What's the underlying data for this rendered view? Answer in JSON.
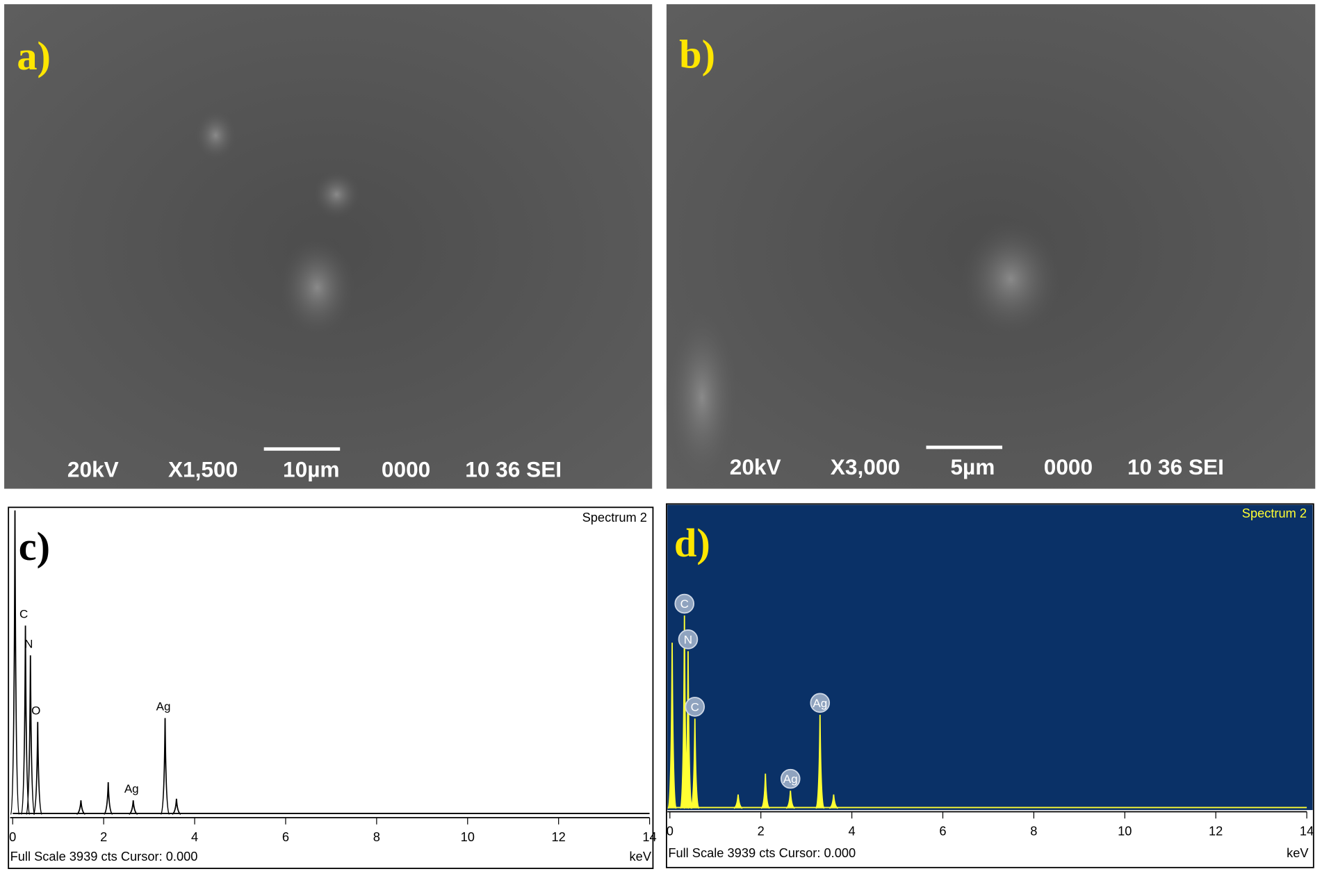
{
  "panels": [
    {
      "label": "a)",
      "info": [
        "20kV",
        "X1,500",
        "10µm",
        "0000",
        "10 36 SEI"
      ]
    },
    {
      "label": "b)",
      "info": [
        "20kV",
        "X3,000",
        "5µm",
        "0000",
        "10 36 SEI"
      ]
    }
  ],
  "spectra": [
    {
      "label": "c)",
      "title": "Spectrum 2",
      "footer": "Full Scale 3939 cts Cursor: 0.000",
      "unit": "keV",
      "xlim": [
        0,
        14
      ],
      "xticks": [
        0,
        2,
        4,
        6,
        8,
        10,
        12,
        14
      ],
      "ylim": [
        0,
        3939
      ],
      "peaks": [
        {
          "x": 0.05,
          "counts": 3900
        },
        {
          "x": 0.28,
          "counts": 2430,
          "label": "C"
        },
        {
          "x": 0.39,
          "counts": 2050,
          "label": "N"
        },
        {
          "x": 0.55,
          "counts": 1200,
          "label": "O"
        },
        {
          "x": 1.5,
          "counts": 200
        },
        {
          "x": 2.1,
          "counts": 430
        },
        {
          "x": 2.65,
          "counts": 200,
          "label": "Ag"
        },
        {
          "x": 3.35,
          "counts": 1250,
          "label": "Ag"
        },
        {
          "x": 3.6,
          "counts": 220
        }
      ]
    },
    {
      "label": "d)",
      "title": "Spectrum 2",
      "footer": "Full Scale 3939 cts Cursor: 0.000",
      "unit": "keV",
      "xlim": [
        0,
        14
      ],
      "xticks": [
        0,
        2,
        4,
        6,
        8,
        10,
        12,
        14
      ],
      "ylim": [
        0,
        3939
      ],
      "peaks": [
        {
          "x": 0.05,
          "counts": 2160
        },
        {
          "x": 0.32,
          "counts": 2510,
          "label": "C"
        },
        {
          "x": 0.4,
          "counts": 2050,
          "label": "N"
        },
        {
          "x": 0.55,
          "counts": 1180,
          "label": "C"
        },
        {
          "x": 1.5,
          "counts": 200
        },
        {
          "x": 2.1,
          "counts": 470
        },
        {
          "x": 2.65,
          "counts": 250,
          "label": "Ag"
        },
        {
          "x": 3.3,
          "counts": 1230,
          "label": "Ag"
        },
        {
          "x": 3.6,
          "counts": 200
        }
      ]
    }
  ]
}
